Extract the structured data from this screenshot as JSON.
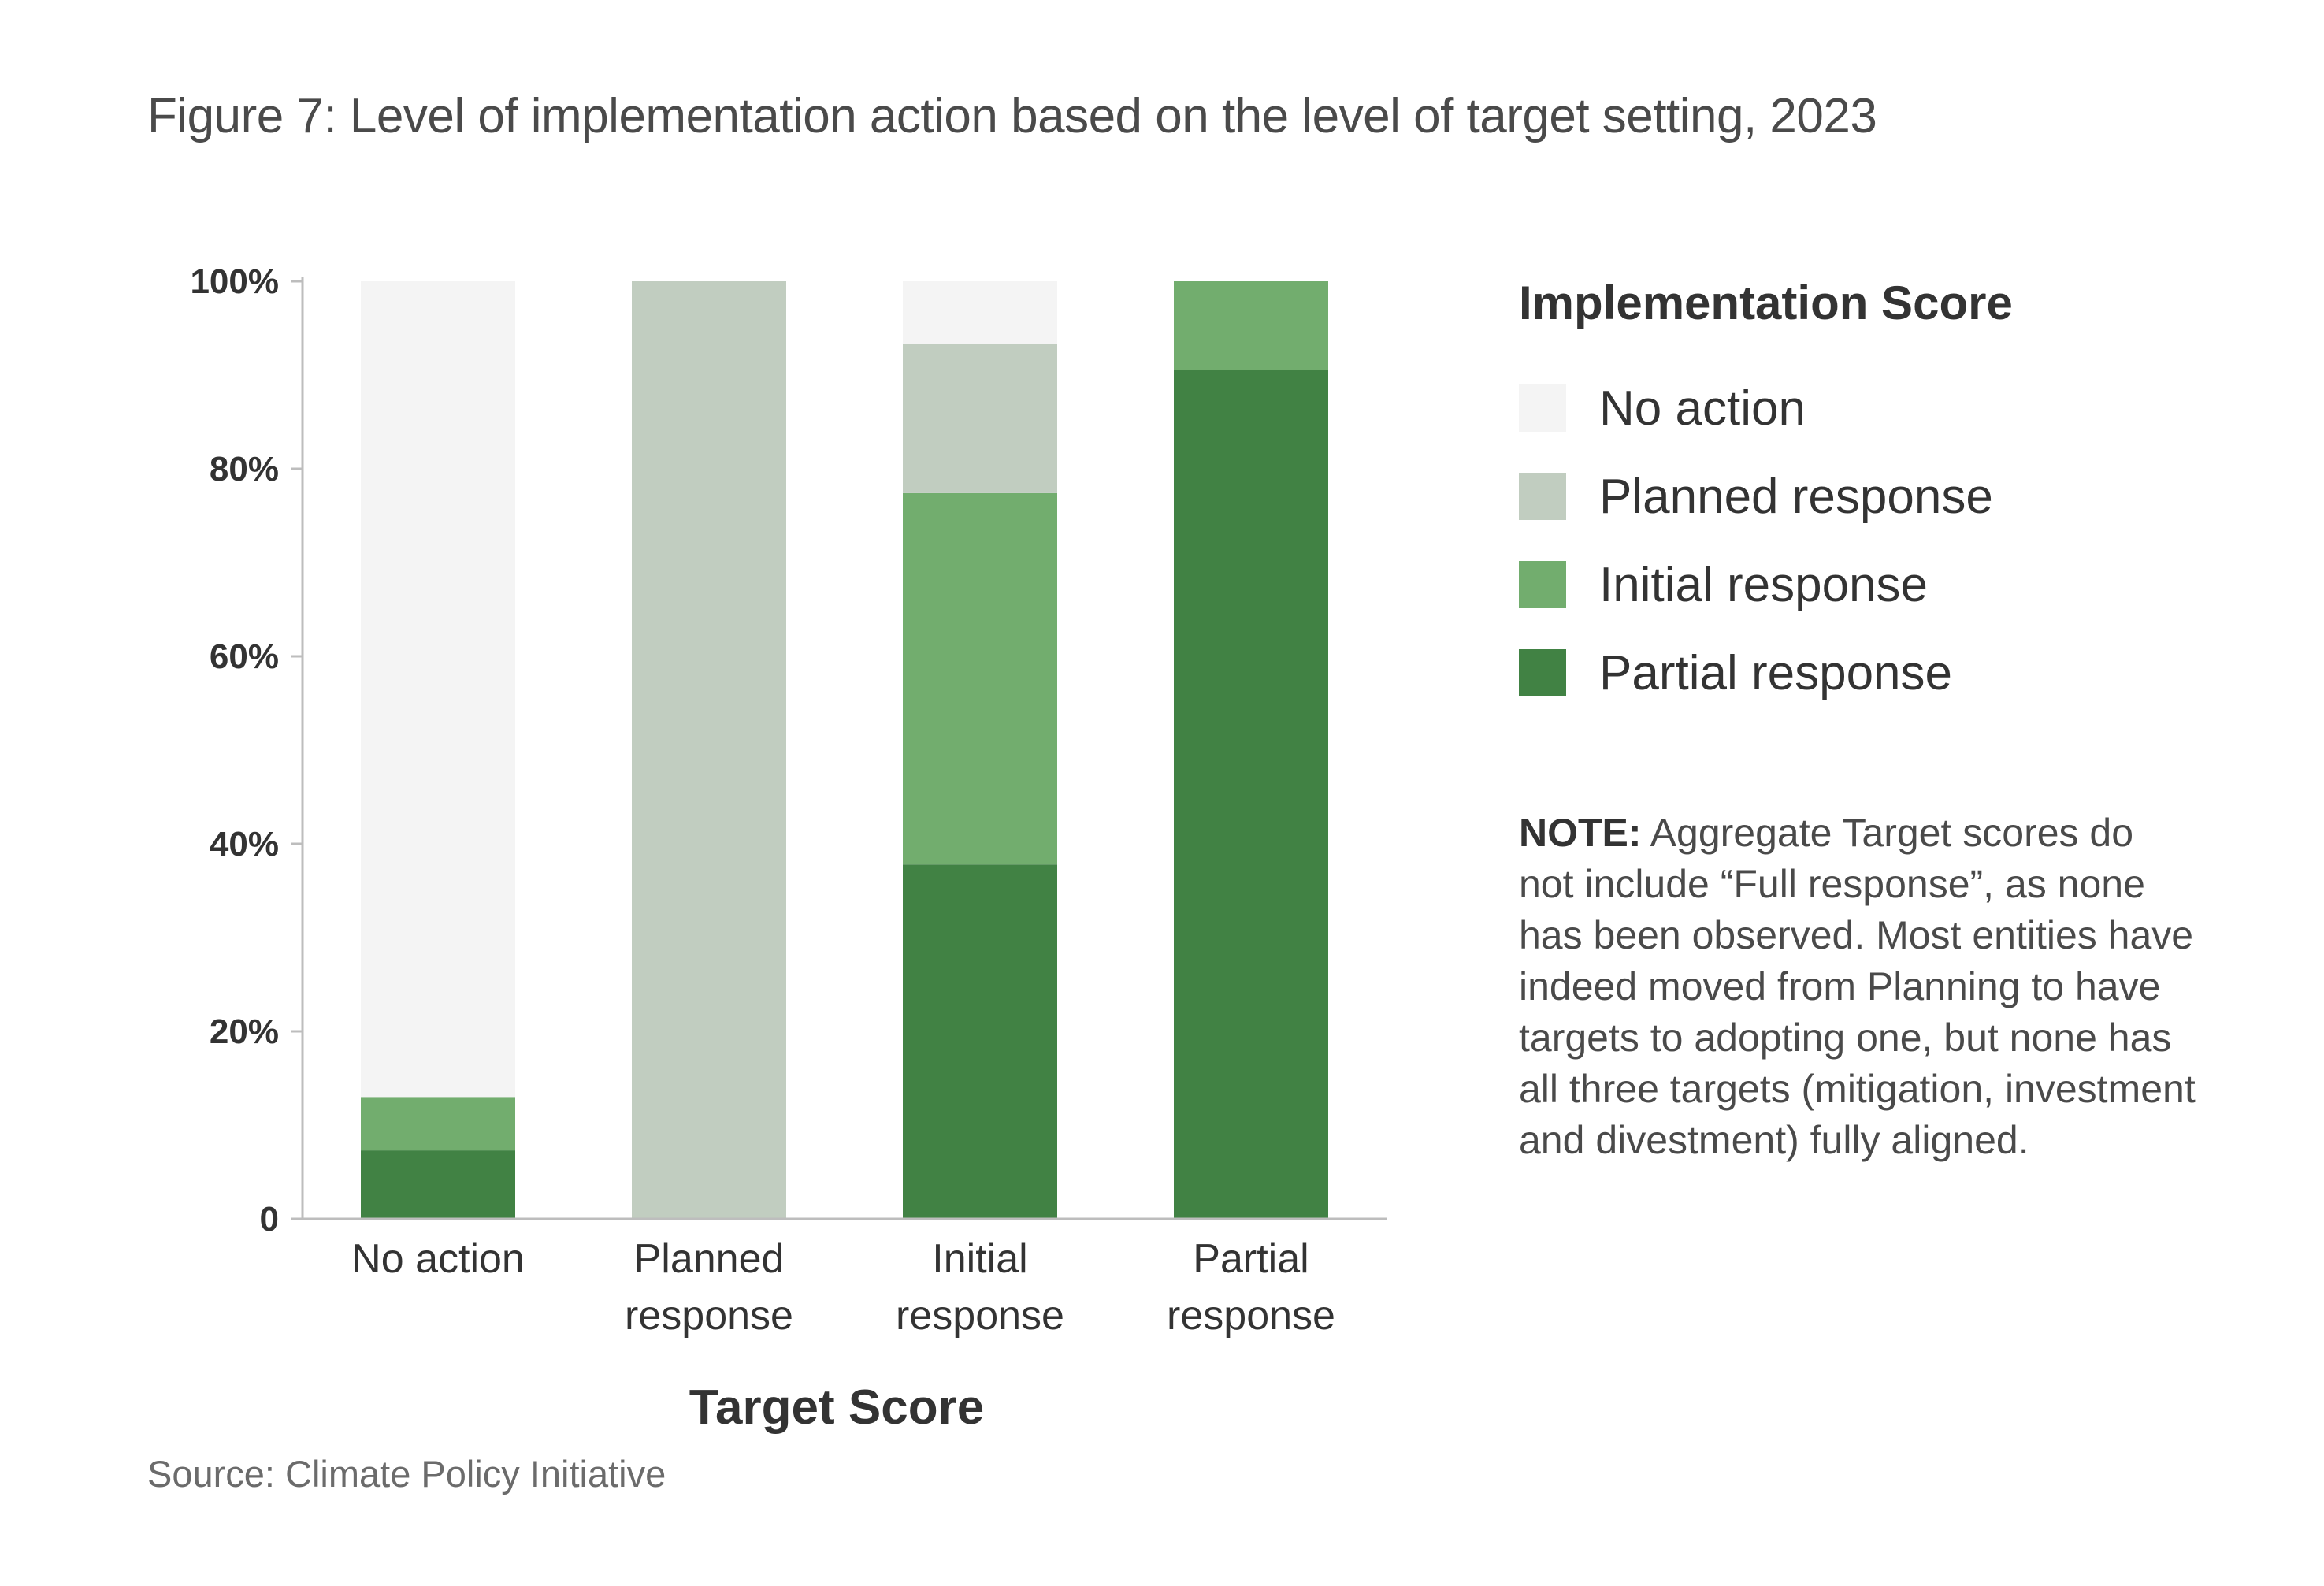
{
  "title": "Figure 7: Level of implementation action based on the level of target setting, 2023",
  "source": "Source: Climate Policy Initiative",
  "legend": {
    "title": "Implementation Score",
    "items": [
      {
        "label": "No action",
        "color": "#f4f4f4"
      },
      {
        "label": "Planned response",
        "color": "#c1cdc0"
      },
      {
        "label": "Initial response",
        "color": "#72ad6e"
      },
      {
        "label": "Partial response",
        "color": "#418244"
      }
    ]
  },
  "note": {
    "label": "NOTE:",
    "text": " Aggregate Target scores do not include “Full response”, as none has been observed. Most entities have indeed moved from Planning to have targets to adopting one, but none has all three targets (mitigation, investment and divestment) fully aligned."
  },
  "chart_data": {
    "type": "bar",
    "stacked": true,
    "categories": [
      [
        "No action"
      ],
      [
        "Planned",
        "response"
      ],
      [
        "Initial",
        "response"
      ],
      [
        "Partial",
        "response"
      ]
    ],
    "xlabel": "Target Score",
    "ylabel": "",
    "ylim": [
      0,
      100
    ],
    "yticks": [
      {
        "value": 0,
        "label": "0"
      },
      {
        "value": 20,
        "label": "20%"
      },
      {
        "value": 40,
        "label": "40%"
      },
      {
        "value": 60,
        "label": "60%"
      },
      {
        "value": 80,
        "label": "80%"
      },
      {
        "value": 100,
        "label": "100%"
      }
    ],
    "series": [
      {
        "name": "Partial response",
        "color": "#418244",
        "values": [
          7.3,
          0,
          37.8,
          90.5
        ]
      },
      {
        "name": "Initial response",
        "color": "#72ad6e",
        "values": [
          5.7,
          0,
          39.6,
          9.5
        ]
      },
      {
        "name": "Planned response",
        "color": "#c1cdc0",
        "values": [
          0,
          100,
          15.9,
          0
        ]
      },
      {
        "name": "No action",
        "color": "#f4f4f4",
        "values": [
          87.0,
          0,
          6.7,
          0
        ]
      }
    ]
  }
}
